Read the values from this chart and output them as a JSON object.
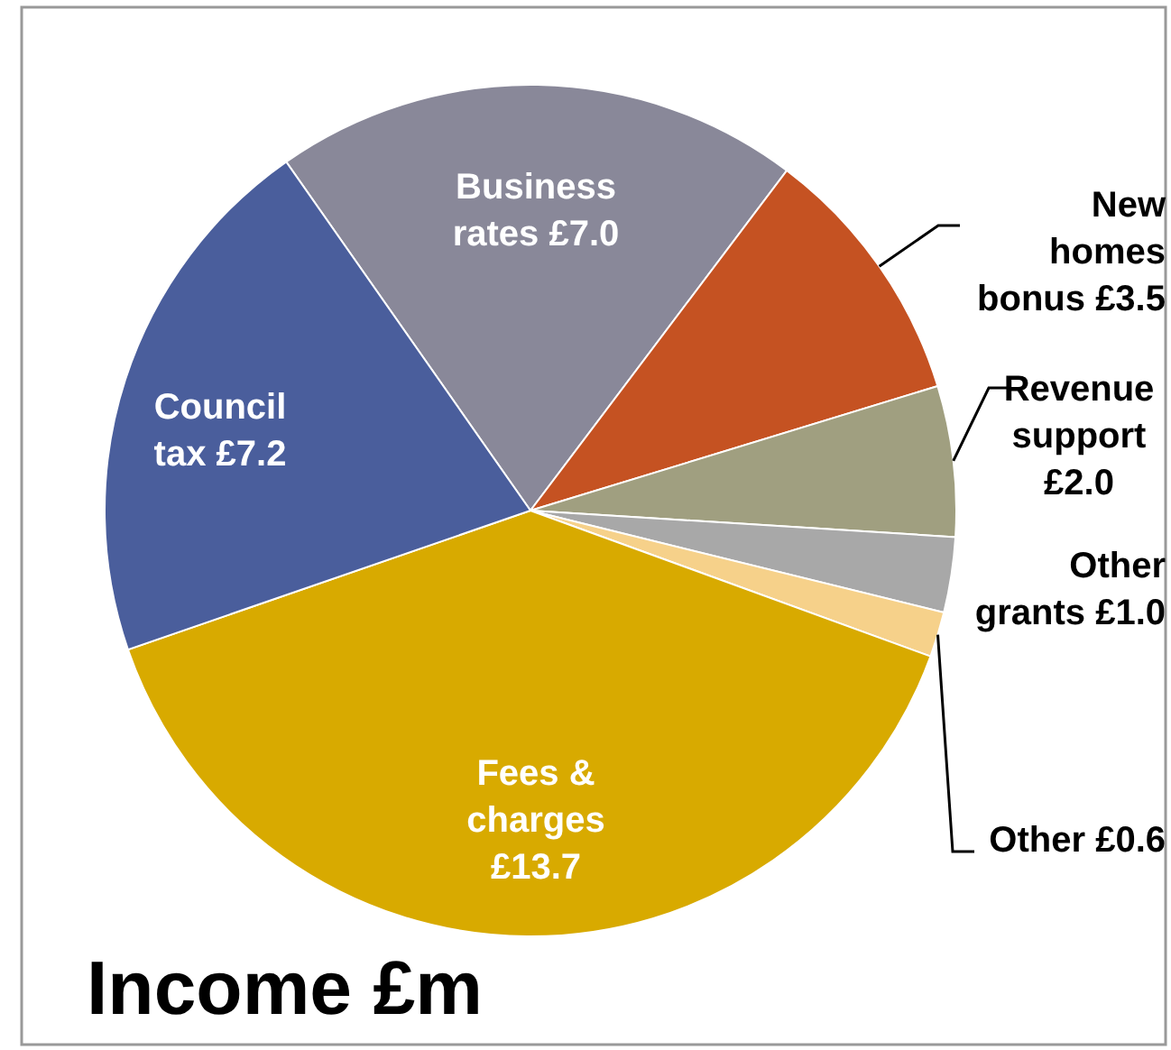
{
  "chart_data": {
    "type": "pie",
    "title": "Income £m",
    "categories": [
      "Business rates",
      "New homes bonus",
      "Revenue support",
      "Other grants",
      "Other",
      "Fees & charges",
      "Council tax"
    ],
    "values": [
      7.0,
      3.5,
      2.0,
      1.0,
      0.6,
      13.7,
      7.2
    ],
    "value_labels": [
      "£7.0",
      "£3.5",
      "£2.0",
      "£1.0",
      "£0.6",
      "£13.7",
      "£7.2"
    ],
    "colors": [
      "#898899",
      "#c55222",
      "#a09f80",
      "#a8a8a8",
      "#f6d18a",
      "#d8aa00",
      "#4a5e9c"
    ]
  }
}
